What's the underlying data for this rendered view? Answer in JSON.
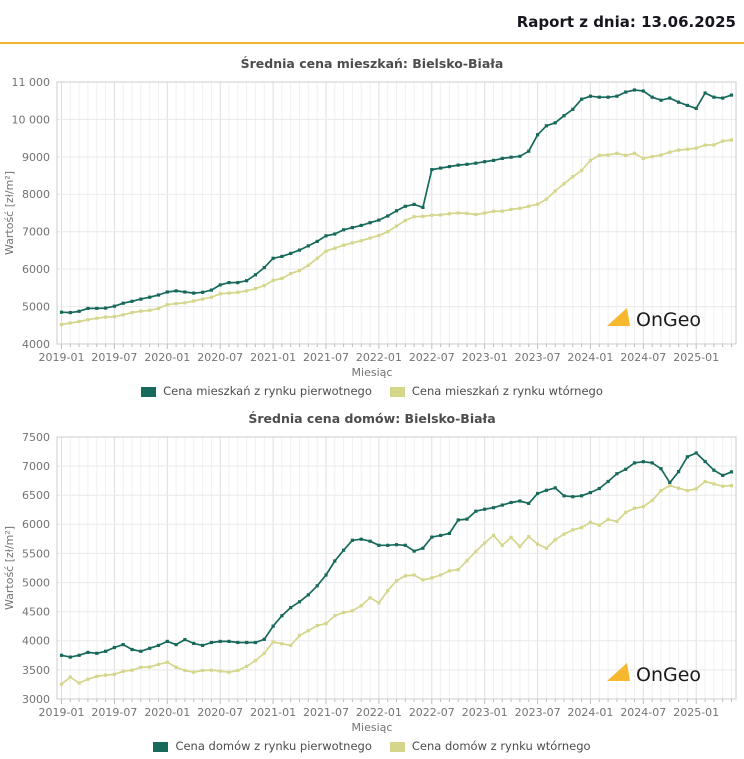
{
  "header": {
    "report_label": "Raport z dnia: 13.06.2025"
  },
  "colors": {
    "accent_gold": "#F0B42F",
    "primary_line": "#16695B",
    "secondary_line": "#D5D68C"
  },
  "watermark": {
    "text": "OnGeo",
    "triangle_color": "#F5B82E"
  },
  "chart_data": [
    {
      "type": "line",
      "title": "Średnia cena mieszkań: Bielsko-Biała",
      "xlabel": "Miesiąc",
      "ylabel": "Wartość [zł/m²]",
      "ylim": [
        4000,
        11000
      ],
      "grid": true,
      "legend_position": "bottom",
      "ytick_values": [
        4000,
        5000,
        6000,
        7000,
        8000,
        9000,
        10000,
        11000
      ],
      "ytick_labels": [
        "4000",
        "5000",
        "6000",
        "7000",
        "8000",
        "9000",
        "10 000",
        "11 000"
      ],
      "xtick_every": 6,
      "x_months": [
        "2019-01",
        "2019-02",
        "2019-03",
        "2019-04",
        "2019-05",
        "2019-06",
        "2019-07",
        "2019-08",
        "2019-09",
        "2019-10",
        "2019-11",
        "2019-12",
        "2020-01",
        "2020-02",
        "2020-03",
        "2020-04",
        "2020-05",
        "2020-06",
        "2020-07",
        "2020-08",
        "2020-09",
        "2020-10",
        "2020-11",
        "2020-12",
        "2021-01",
        "2021-02",
        "2021-03",
        "2021-04",
        "2021-05",
        "2021-06",
        "2021-07",
        "2021-08",
        "2021-09",
        "2021-10",
        "2021-11",
        "2021-12",
        "2022-01",
        "2022-02",
        "2022-03",
        "2022-04",
        "2022-05",
        "2022-06",
        "2022-07",
        "2022-08",
        "2022-09",
        "2022-10",
        "2022-11",
        "2022-12",
        "2023-01",
        "2023-02",
        "2023-03",
        "2023-04",
        "2023-05",
        "2023-06",
        "2023-07",
        "2023-08",
        "2023-09",
        "2023-10",
        "2023-11",
        "2023-12",
        "2024-01",
        "2024-02",
        "2024-03",
        "2024-04",
        "2024-05",
        "2024-06",
        "2024-07",
        "2024-08",
        "2024-09",
        "2024-10",
        "2024-11",
        "2024-12",
        "2025-01",
        "2025-02",
        "2025-03",
        "2025-04",
        "2025-05"
      ],
      "series": [
        {
          "name": "Cena mieszkań z rynku pierwotnego",
          "color": "#16695B",
          "values": [
            4850,
            4840,
            4875,
            4950,
            4950,
            4960,
            5010,
            5090,
            5140,
            5200,
            5250,
            5310,
            5390,
            5420,
            5390,
            5360,
            5380,
            5440,
            5580,
            5640,
            5640,
            5690,
            5850,
            6040,
            6290,
            6340,
            6420,
            6510,
            6620,
            6740,
            6890,
            6940,
            7050,
            7110,
            7170,
            7240,
            7310,
            7420,
            7560,
            7680,
            7730,
            7650,
            8660,
            8700,
            8740,
            8780,
            8800,
            8830,
            8870,
            8905,
            8960,
            8990,
            9015,
            9150,
            9590,
            9830,
            9910,
            10100,
            10270,
            10540,
            10620,
            10595,
            10595,
            10620,
            10730,
            10785,
            10760,
            10595,
            10515,
            10570,
            10460,
            10375,
            10295,
            10705,
            10595,
            10570,
            10650
          ]
        },
        {
          "name": "Cena mieszkań z rynku wtórnego",
          "color": "#D5D68C",
          "values": [
            4520,
            4560,
            4600,
            4650,
            4690,
            4720,
            4730,
            4780,
            4840,
            4880,
            4900,
            4950,
            5050,
            5080,
            5100,
            5150,
            5200,
            5250,
            5340,
            5360,
            5380,
            5420,
            5480,
            5560,
            5700,
            5750,
            5880,
            5960,
            6100,
            6290,
            6480,
            6560,
            6640,
            6700,
            6760,
            6830,
            6900,
            7000,
            7150,
            7300,
            7400,
            7410,
            7440,
            7450,
            7480,
            7500,
            7490,
            7460,
            7500,
            7545,
            7550,
            7595,
            7625,
            7680,
            7735,
            7870,
            8090,
            8280,
            8470,
            8635,
            8905,
            9040,
            9050,
            9095,
            9040,
            9095,
            8960,
            9005,
            9050,
            9125,
            9180,
            9205,
            9230,
            9315,
            9320,
            9420,
            9450
          ]
        }
      ]
    },
    {
      "type": "line",
      "title": "Średnia cena domów: Bielsko-Biała",
      "xlabel": "Miesiąc",
      "ylabel": "Wartość [zł/m²]",
      "ylim": [
        3000,
        7500
      ],
      "grid": true,
      "legend_position": "bottom",
      "ytick_values": [
        3000,
        3500,
        4000,
        4500,
        5000,
        5500,
        6000,
        6500,
        7000,
        7500
      ],
      "ytick_labels": [
        "3000",
        "3500",
        "4000",
        "4500",
        "5000",
        "5500",
        "6000",
        "6500",
        "7000",
        "7500"
      ],
      "xtick_every": 6,
      "x_months": [
        "2019-01",
        "2019-02",
        "2019-03",
        "2019-04",
        "2019-05",
        "2019-06",
        "2019-07",
        "2019-08",
        "2019-09",
        "2019-10",
        "2019-11",
        "2019-12",
        "2020-01",
        "2020-02",
        "2020-03",
        "2020-04",
        "2020-05",
        "2020-06",
        "2020-07",
        "2020-08",
        "2020-09",
        "2020-10",
        "2020-11",
        "2020-12",
        "2021-01",
        "2021-02",
        "2021-03",
        "2021-04",
        "2021-05",
        "2021-06",
        "2021-07",
        "2021-08",
        "2021-09",
        "2021-10",
        "2021-11",
        "2021-12",
        "2022-01",
        "2022-02",
        "2022-03",
        "2022-04",
        "2022-05",
        "2022-06",
        "2022-07",
        "2022-08",
        "2022-09",
        "2022-10",
        "2022-11",
        "2022-12",
        "2023-01",
        "2023-02",
        "2023-03",
        "2023-04",
        "2023-05",
        "2023-06",
        "2023-07",
        "2023-08",
        "2023-09",
        "2023-10",
        "2023-11",
        "2023-12",
        "2024-01",
        "2024-02",
        "2024-03",
        "2024-04",
        "2024-05",
        "2024-06",
        "2024-07",
        "2024-08",
        "2024-09",
        "2024-10",
        "2024-11",
        "2024-12",
        "2025-01",
        "2025-02",
        "2025-03",
        "2025-04",
        "2025-05"
      ],
      "series": [
        {
          "name": "Cena domów z rynku pierwotnego",
          "color": "#16695B",
          "values": [
            3750,
            3720,
            3750,
            3800,
            3785,
            3820,
            3885,
            3935,
            3850,
            3820,
            3870,
            3920,
            3990,
            3935,
            4020,
            3955,
            3920,
            3970,
            3990,
            3990,
            3970,
            3970,
            3970,
            4025,
            4250,
            4430,
            4570,
            4670,
            4790,
            4945,
            5130,
            5370,
            5555,
            5725,
            5745,
            5710,
            5640,
            5640,
            5650,
            5640,
            5540,
            5590,
            5780,
            5810,
            5845,
            6075,
            6090,
            6225,
            6260,
            6285,
            6330,
            6375,
            6400,
            6360,
            6530,
            6585,
            6625,
            6490,
            6475,
            6490,
            6545,
            6615,
            6735,
            6870,
            6945,
            7055,
            7075,
            7055,
            6955,
            6715,
            6905,
            7160,
            7225,
            7080,
            6930,
            6840,
            6900
          ]
        },
        {
          "name": "Cena domów z rynku wtórnego",
          "color": "#D5D68C",
          "values": [
            3255,
            3375,
            3275,
            3340,
            3390,
            3410,
            3425,
            3475,
            3495,
            3545,
            3550,
            3595,
            3630,
            3545,
            3490,
            3460,
            3490,
            3495,
            3480,
            3460,
            3490,
            3560,
            3660,
            3785,
            3980,
            3950,
            3920,
            4090,
            4175,
            4260,
            4295,
            4430,
            4485,
            4515,
            4600,
            4740,
            4650,
            4860,
            5030,
            5115,
            5130,
            5045,
            5080,
            5130,
            5200,
            5220,
            5375,
            5535,
            5680,
            5810,
            5640,
            5775,
            5620,
            5790,
            5660,
            5590,
            5735,
            5830,
            5905,
            5945,
            6035,
            5985,
            6085,
            6050,
            6205,
            6275,
            6305,
            6410,
            6580,
            6665,
            6620,
            6580,
            6610,
            6735,
            6695,
            6655,
            6665
          ]
        }
      ]
    }
  ]
}
